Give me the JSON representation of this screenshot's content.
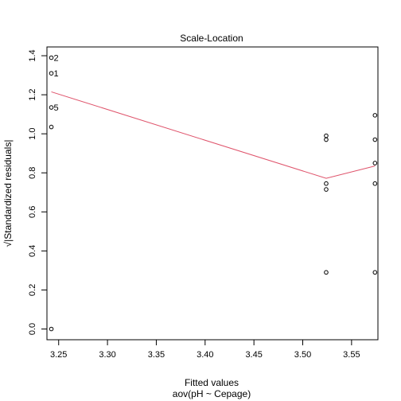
{
  "chart_data": {
    "type": "scatter",
    "title": "Scale-Location",
    "xlabel": "Fitted values",
    "xlabel_sub": "aov(pH ~ Cepage)",
    "ylabel": "√|Standardized residuals|",
    "xlim": [
      3.238,
      3.577
    ],
    "ylim": [
      -0.055,
      1.445
    ],
    "x_ticks": [
      3.25,
      3.3,
      3.35,
      3.4,
      3.45,
      3.5,
      3.55
    ],
    "x_tick_labels": [
      "3.25",
      "3.30",
      "3.35",
      "3.40",
      "3.45",
      "3.50",
      "3.55"
    ],
    "y_ticks": [
      0.0,
      0.2,
      0.4,
      0.6,
      0.8,
      1.0,
      1.2,
      1.4
    ],
    "y_tick_labels": [
      "0.0",
      "0.2",
      "0.4",
      "0.6",
      "0.8",
      "1.0",
      "1.2",
      "1.4"
    ],
    "points": [
      {
        "x": 3.2425,
        "y": 1.39,
        "label": "2"
      },
      {
        "x": 3.2425,
        "y": 1.31,
        "label": "1"
      },
      {
        "x": 3.2425,
        "y": 1.135,
        "label": "5"
      },
      {
        "x": 3.2425,
        "y": 1.035,
        "label": ""
      },
      {
        "x": 3.2425,
        "y": 0.0,
        "label": ""
      },
      {
        "x": 3.524,
        "y": 0.99,
        "label": ""
      },
      {
        "x": 3.524,
        "y": 0.97,
        "label": ""
      },
      {
        "x": 3.524,
        "y": 0.745,
        "label": ""
      },
      {
        "x": 3.524,
        "y": 0.715,
        "label": ""
      },
      {
        "x": 3.524,
        "y": 0.29,
        "label": ""
      },
      {
        "x": 3.574,
        "y": 1.095,
        "label": ""
      },
      {
        "x": 3.574,
        "y": 0.97,
        "label": ""
      },
      {
        "x": 3.574,
        "y": 0.85,
        "label": ""
      },
      {
        "x": 3.574,
        "y": 0.745,
        "label": ""
      },
      {
        "x": 3.574,
        "y": 0.29,
        "label": ""
      }
    ],
    "smooth_line": {
      "x": [
        3.2425,
        3.524,
        3.574
      ],
      "y": [
        1.215,
        0.772,
        0.835
      ]
    },
    "colors": {
      "points": "#000000",
      "smooth_line": "#df536b",
      "axes": "#000000"
    },
    "grid": false,
    "legend": "none"
  }
}
